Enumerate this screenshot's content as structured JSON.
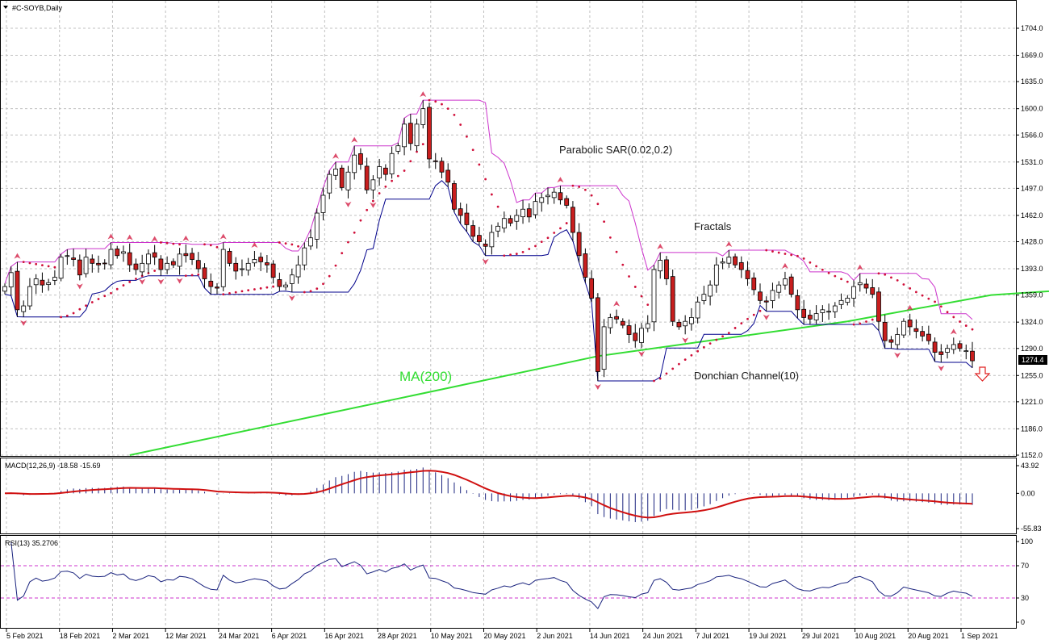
{
  "chart_data": {
    "title": "#C-SOYB,Daily",
    "type": "candlestick",
    "price_axis": {
      "ticks": [
        "1704.0",
        "1669.0",
        "1635.0",
        "1600.0",
        "1566.0",
        "1531.0",
        "1497.0",
        "1462.0",
        "1428.0",
        "1393.0",
        "1359.0",
        "1324.0",
        "1290.0",
        "1255.0",
        "1221.0",
        "1186.0",
        "1152.0"
      ],
      "range": [
        1152,
        1704
      ],
      "last_price": "1274.4"
    },
    "x_axis": {
      "labels": [
        "5 Feb 2021",
        "18 Feb 2021",
        "2 Mar 2021",
        "12 Mar 2021",
        "24 Mar 2021",
        "6 Apr 2021",
        "16 Apr 2021",
        "28 Apr 2021",
        "10 May 2021",
        "20 May 2021",
        "2 Jun 2021",
        "14 Jun 2021",
        "24 Jun 2021",
        "7 Jul 2021",
        "19 Jul 2021",
        "29 Jul 2021",
        "10 Aug 2021",
        "20 Aug 2021",
        "1 Sep 2021"
      ]
    },
    "annotations": {
      "parabolic_sar": "Parabolic SAR(0.02,0.2)",
      "fractals": "Fractals",
      "donchian": "Donchian Channel(10)",
      "ma": "MA(200)"
    },
    "closes": [
      1370,
      1388,
      1340,
      1345,
      1370,
      1380,
      1372,
      1375,
      1382,
      1408,
      1410,
      1405,
      1385,
      1408,
      1400,
      1398,
      1400,
      1418,
      1410,
      1415,
      1398,
      1392,
      1400,
      1412,
      1408,
      1392,
      1400,
      1398,
      1412,
      1410,
      1405,
      1393,
      1380,
      1370,
      1368,
      1418,
      1400,
      1390,
      1393,
      1400,
      1405,
      1402,
      1398,
      1382,
      1370,
      1372,
      1385,
      1398,
      1420,
      1433,
      1465,
      1488,
      1515,
      1522,
      1498,
      1518,
      1540,
      1528,
      1495,
      1508,
      1525,
      1515,
      1542,
      1552,
      1580,
      1555,
      1580,
      1600,
      1535,
      1532,
      1518,
      1505,
      1470,
      1462,
      1450,
      1435,
      1428,
      1422,
      1440,
      1448,
      1458,
      1452,
      1462,
      1470,
      1460,
      1480,
      1485,
      1488,
      1492,
      1482,
      1475,
      1440,
      1410,
      1382,
      1355,
      1260,
      1318,
      1330,
      1328,
      1320,
      1308,
      1300,
      1316,
      1322,
      1392,
      1404,
      1380,
      1325,
      1318,
      1325,
      1330,
      1350,
      1360,
      1372,
      1398,
      1402,
      1408,
      1398,
      1392,
      1380,
      1366,
      1352,
      1350,
      1365,
      1372,
      1380,
      1360,
      1340,
      1330,
      1328,
      1335,
      1340,
      1338,
      1345,
      1352,
      1355,
      1370,
      1375,
      1368,
      1360,
      1325,
      1300,
      1298,
      1308,
      1325,
      1318,
      1312,
      1306,
      1300,
      1285,
      1282,
      1290,
      1295,
      1290,
      1287,
      1274
    ],
    "ma200": [
      [
        20,
        1152
      ],
      [
        70,
        1237
      ],
      [
        95,
        1280
      ],
      [
        135,
        1325
      ],
      [
        158,
        1359
      ],
      [
        175,
        1368
      ],
      [
        184,
        1370
      ]
    ],
    "macd": {
      "label": "MACD(12,26,9) -18.58 -15.69",
      "value": -18.58,
      "signal_value": -15.69,
      "ticks": [
        "43.92",
        "0.00",
        "-55.83"
      ],
      "range": [
        -55.83,
        43.92
      ]
    },
    "rsi": {
      "label": "RSI(13) 35.2706",
      "value": 35.27,
      "ticks": [
        "100",
        "70",
        "30",
        "0"
      ],
      "range": [
        0,
        100
      ],
      "levels": [
        70,
        30
      ]
    },
    "colors": {
      "bull": "#ffffff",
      "bear": "#c81e1e",
      "sar": "#d0103a",
      "donchian_upper": "#cc33cc",
      "donchian_lower": "#00008b",
      "ma200": "#33dd33",
      "macd_signal": "#d01010",
      "macd_hist": "#1a237e",
      "rsi_line": "#1a237e",
      "rsi_levels": "#cc33cc",
      "grid": "#c0c0c0"
    }
  }
}
